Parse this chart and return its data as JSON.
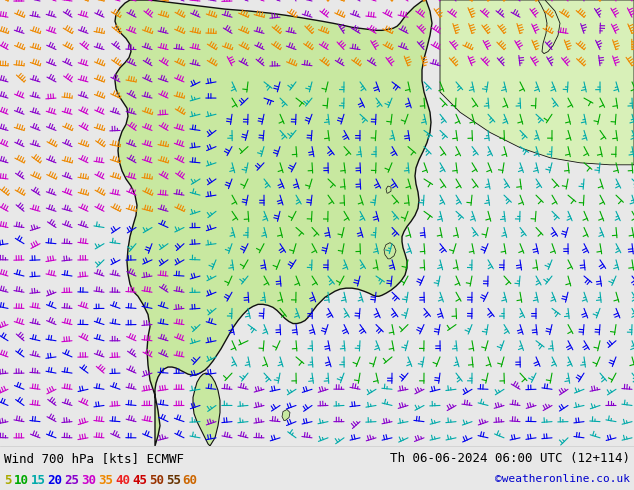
{
  "title_left": "Wind 700 hPa [kts] ECMWF",
  "title_right": "Th 06-06-2024 06:00 UTC (12+114)",
  "credit": "©weatheronline.co.uk",
  "legend_values": [
    5,
    10,
    15,
    20,
    25,
    30,
    35,
    40,
    45,
    50,
    55,
    60
  ],
  "legend_colors": [
    "#aaaa00",
    "#00aa00",
    "#00aaaa",
    "#0000ee",
    "#8800cc",
    "#cc00cc",
    "#ee8800",
    "#ee2222",
    "#cc0000",
    "#993300",
    "#663300",
    "#cc6600"
  ],
  "bg_land_main": "#c8e8a0",
  "bg_land_light": "#d8f0b8",
  "bg_sea": "#e8e8e8",
  "bg_outer": "#f0f0f0",
  "border_color": "#111111",
  "fig_width": 6.34,
  "fig_height": 4.9,
  "dpi": 100,
  "bottom_bar_color": "#ffffff",
  "text_color": "#000000",
  "font_size_title": 9,
  "font_size_legend": 9,
  "font_size_credit": 8
}
